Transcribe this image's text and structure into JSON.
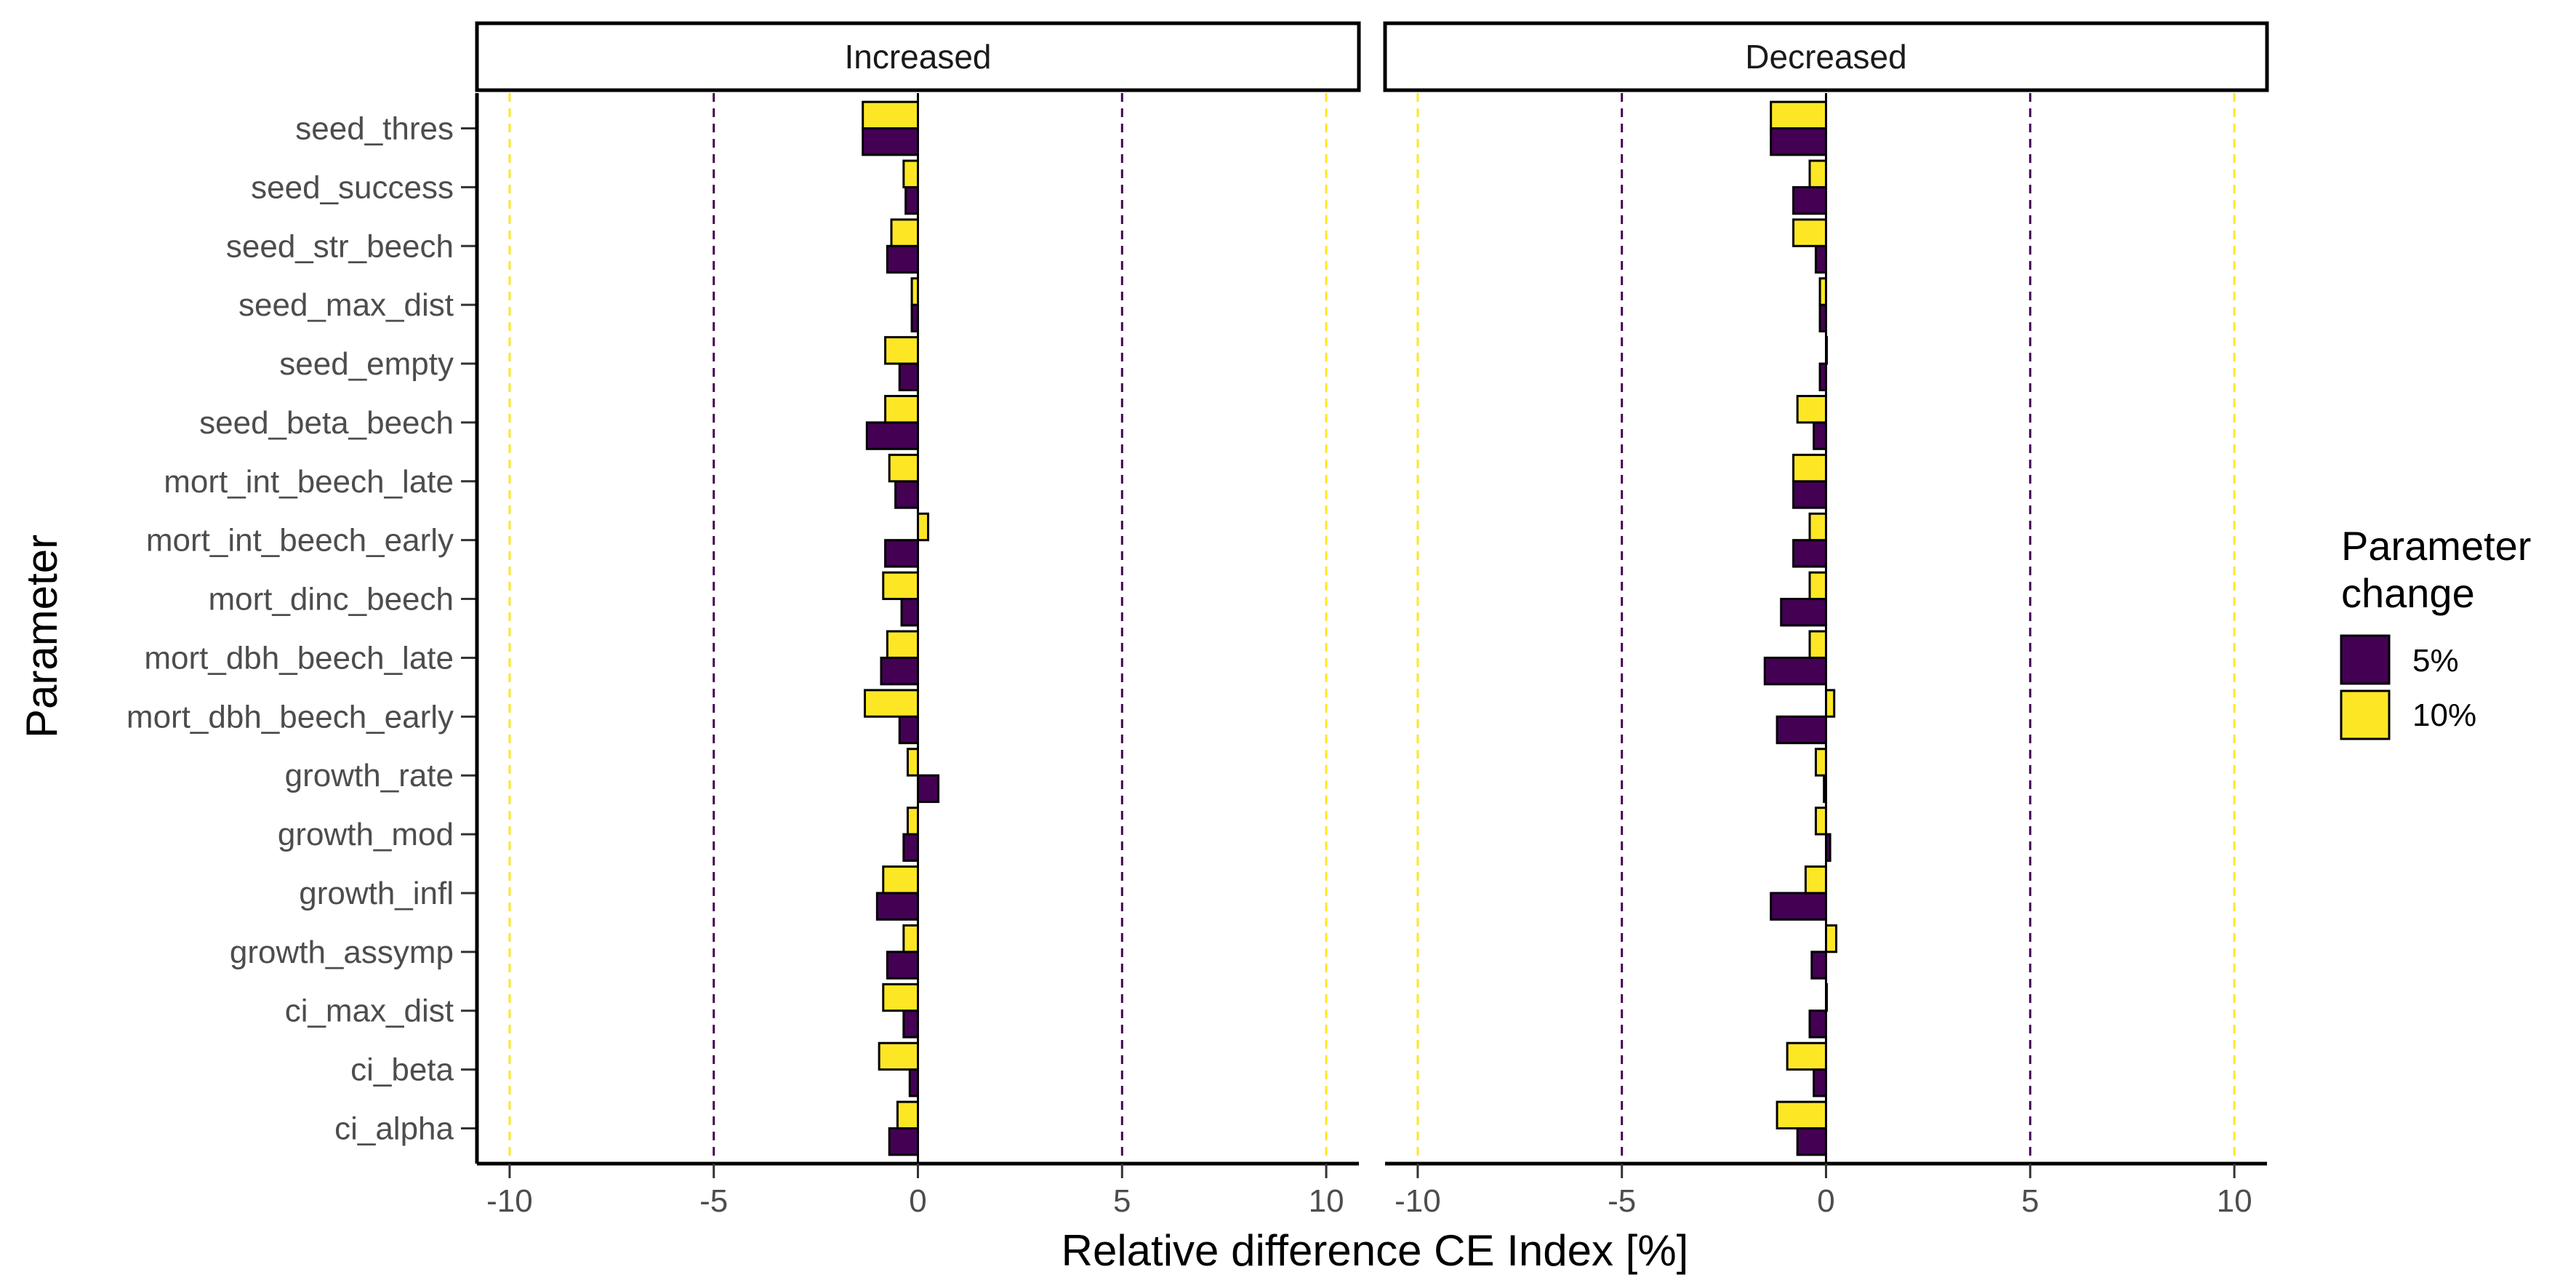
{
  "chart_data": {
    "type": "bar",
    "orientation": "horizontal",
    "ylabel": "Parameter",
    "xlabel": "Relative difference CE Index [%]",
    "xlim": [
      -10.8,
      10.8
    ],
    "x_ticks": [
      -10,
      -5,
      0,
      5,
      10
    ],
    "x_tick_labels": [
      "-10",
      "-5",
      "0",
      "5",
      "10"
    ],
    "grid": false,
    "reference_lines": [
      {
        "x": -10,
        "color": "#FDE725",
        "style": "dashed"
      },
      {
        "x": -5,
        "color": "#440154",
        "style": "dashed"
      },
      {
        "x": 5,
        "color": "#440154",
        "style": "dashed"
      },
      {
        "x": 10,
        "color": "#FDE725",
        "style": "dashed"
      }
    ],
    "categories": [
      "seed_thres",
      "seed_success",
      "seed_str_beech",
      "seed_max_dist",
      "seed_empty",
      "seed_beta_beech",
      "mort_int_beech_late",
      "mort_int_beech_early",
      "mort_dinc_beech",
      "mort_dbh_beech_late",
      "mort_dbh_beech_early",
      "growth_rate",
      "growth_mod",
      "growth_infl",
      "growth_assymp",
      "ci_max_dist",
      "ci_beta",
      "ci_alpha"
    ],
    "legend": {
      "title_lines": [
        "Parameter",
        "change"
      ],
      "position": "right",
      "entries": [
        {
          "label": "5%",
          "color": "#440154"
        },
        {
          "label": "10%",
          "color": "#FDE725"
        }
      ]
    },
    "panels": [
      {
        "label": "Increased",
        "series": [
          {
            "name": "5%",
            "values": [
              -1.35,
              -0.3,
              -0.75,
              -0.15,
              -0.45,
              -1.25,
              -0.55,
              -0.8,
              -0.4,
              -0.9,
              -0.45,
              0.5,
              -0.35,
              -1.0,
              -0.75,
              -0.35,
              -0.2,
              -0.7
            ]
          },
          {
            "name": "10%",
            "values": [
              -1.35,
              -0.35,
              -0.65,
              -0.15,
              -0.8,
              -0.8,
              -0.7,
              0.25,
              -0.85,
              -0.75,
              -1.3,
              -0.25,
              -0.25,
              -0.85,
              -0.35,
              -0.85,
              -0.95,
              -0.5
            ]
          }
        ]
      },
      {
        "label": "Decreased",
        "series": [
          {
            "name": "5%",
            "values": [
              -1.35,
              -0.8,
              -0.25,
              -0.15,
              -0.15,
              -0.3,
              -0.8,
              -0.8,
              -1.1,
              -1.5,
              -1.2,
              -0.05,
              0.1,
              -1.35,
              -0.35,
              -0.4,
              -0.3,
              -0.7
            ]
          },
          {
            "name": "10%",
            "values": [
              -1.35,
              -0.4,
              -0.8,
              -0.15,
              0.0,
              -0.7,
              -0.8,
              -0.4,
              -0.4,
              -0.4,
              0.2,
              -0.25,
              -0.25,
              -0.5,
              0.25,
              0.0,
              -0.95,
              -1.2
            ]
          }
        ]
      }
    ]
  }
}
